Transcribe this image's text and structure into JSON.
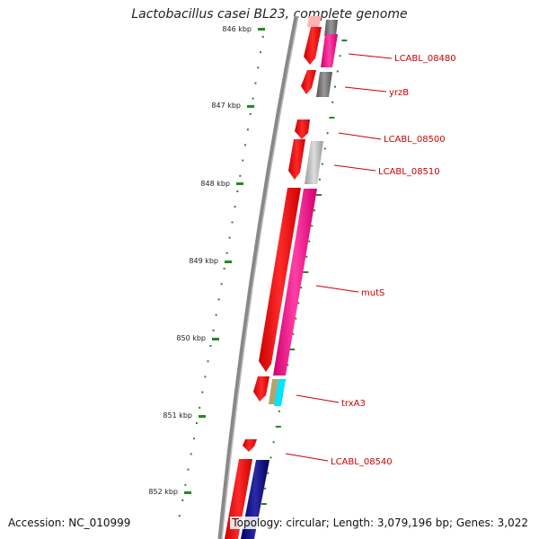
{
  "title": "Lactobacillus casei BL23, complete genome",
  "accession": "Accession: NC_010999",
  "topology": "Topology: circular; Length: 3,079,196 bp; Genes: 3,022",
  "ticks": [
    {
      "label": "846 kbp"
    },
    {
      "label": "847 kbp"
    },
    {
      "label": "848 kbp"
    },
    {
      "label": "849 kbp"
    },
    {
      "label": "850 kbp"
    },
    {
      "label": "851 kbp"
    },
    {
      "label": "852 kbp"
    }
  ],
  "genes": [
    {
      "label": "LCABL_08480"
    },
    {
      "label": "yrzB"
    },
    {
      "label": "LCABL_08500"
    },
    {
      "label": "LCABL_08510"
    },
    {
      "label": "mutS"
    },
    {
      "label": "trxA3"
    },
    {
      "label": "LCABL_08540"
    }
  ],
  "colors": {
    "cds": "#ff0000",
    "pink": "#ff1493",
    "gray": "#888888",
    "light_gray": "#bbbbbb",
    "cyan": "#00e5ff",
    "tan": "#b5a36a",
    "navy": "#000080",
    "tick_green": "#228b22",
    "backbone": "#888888"
  }
}
